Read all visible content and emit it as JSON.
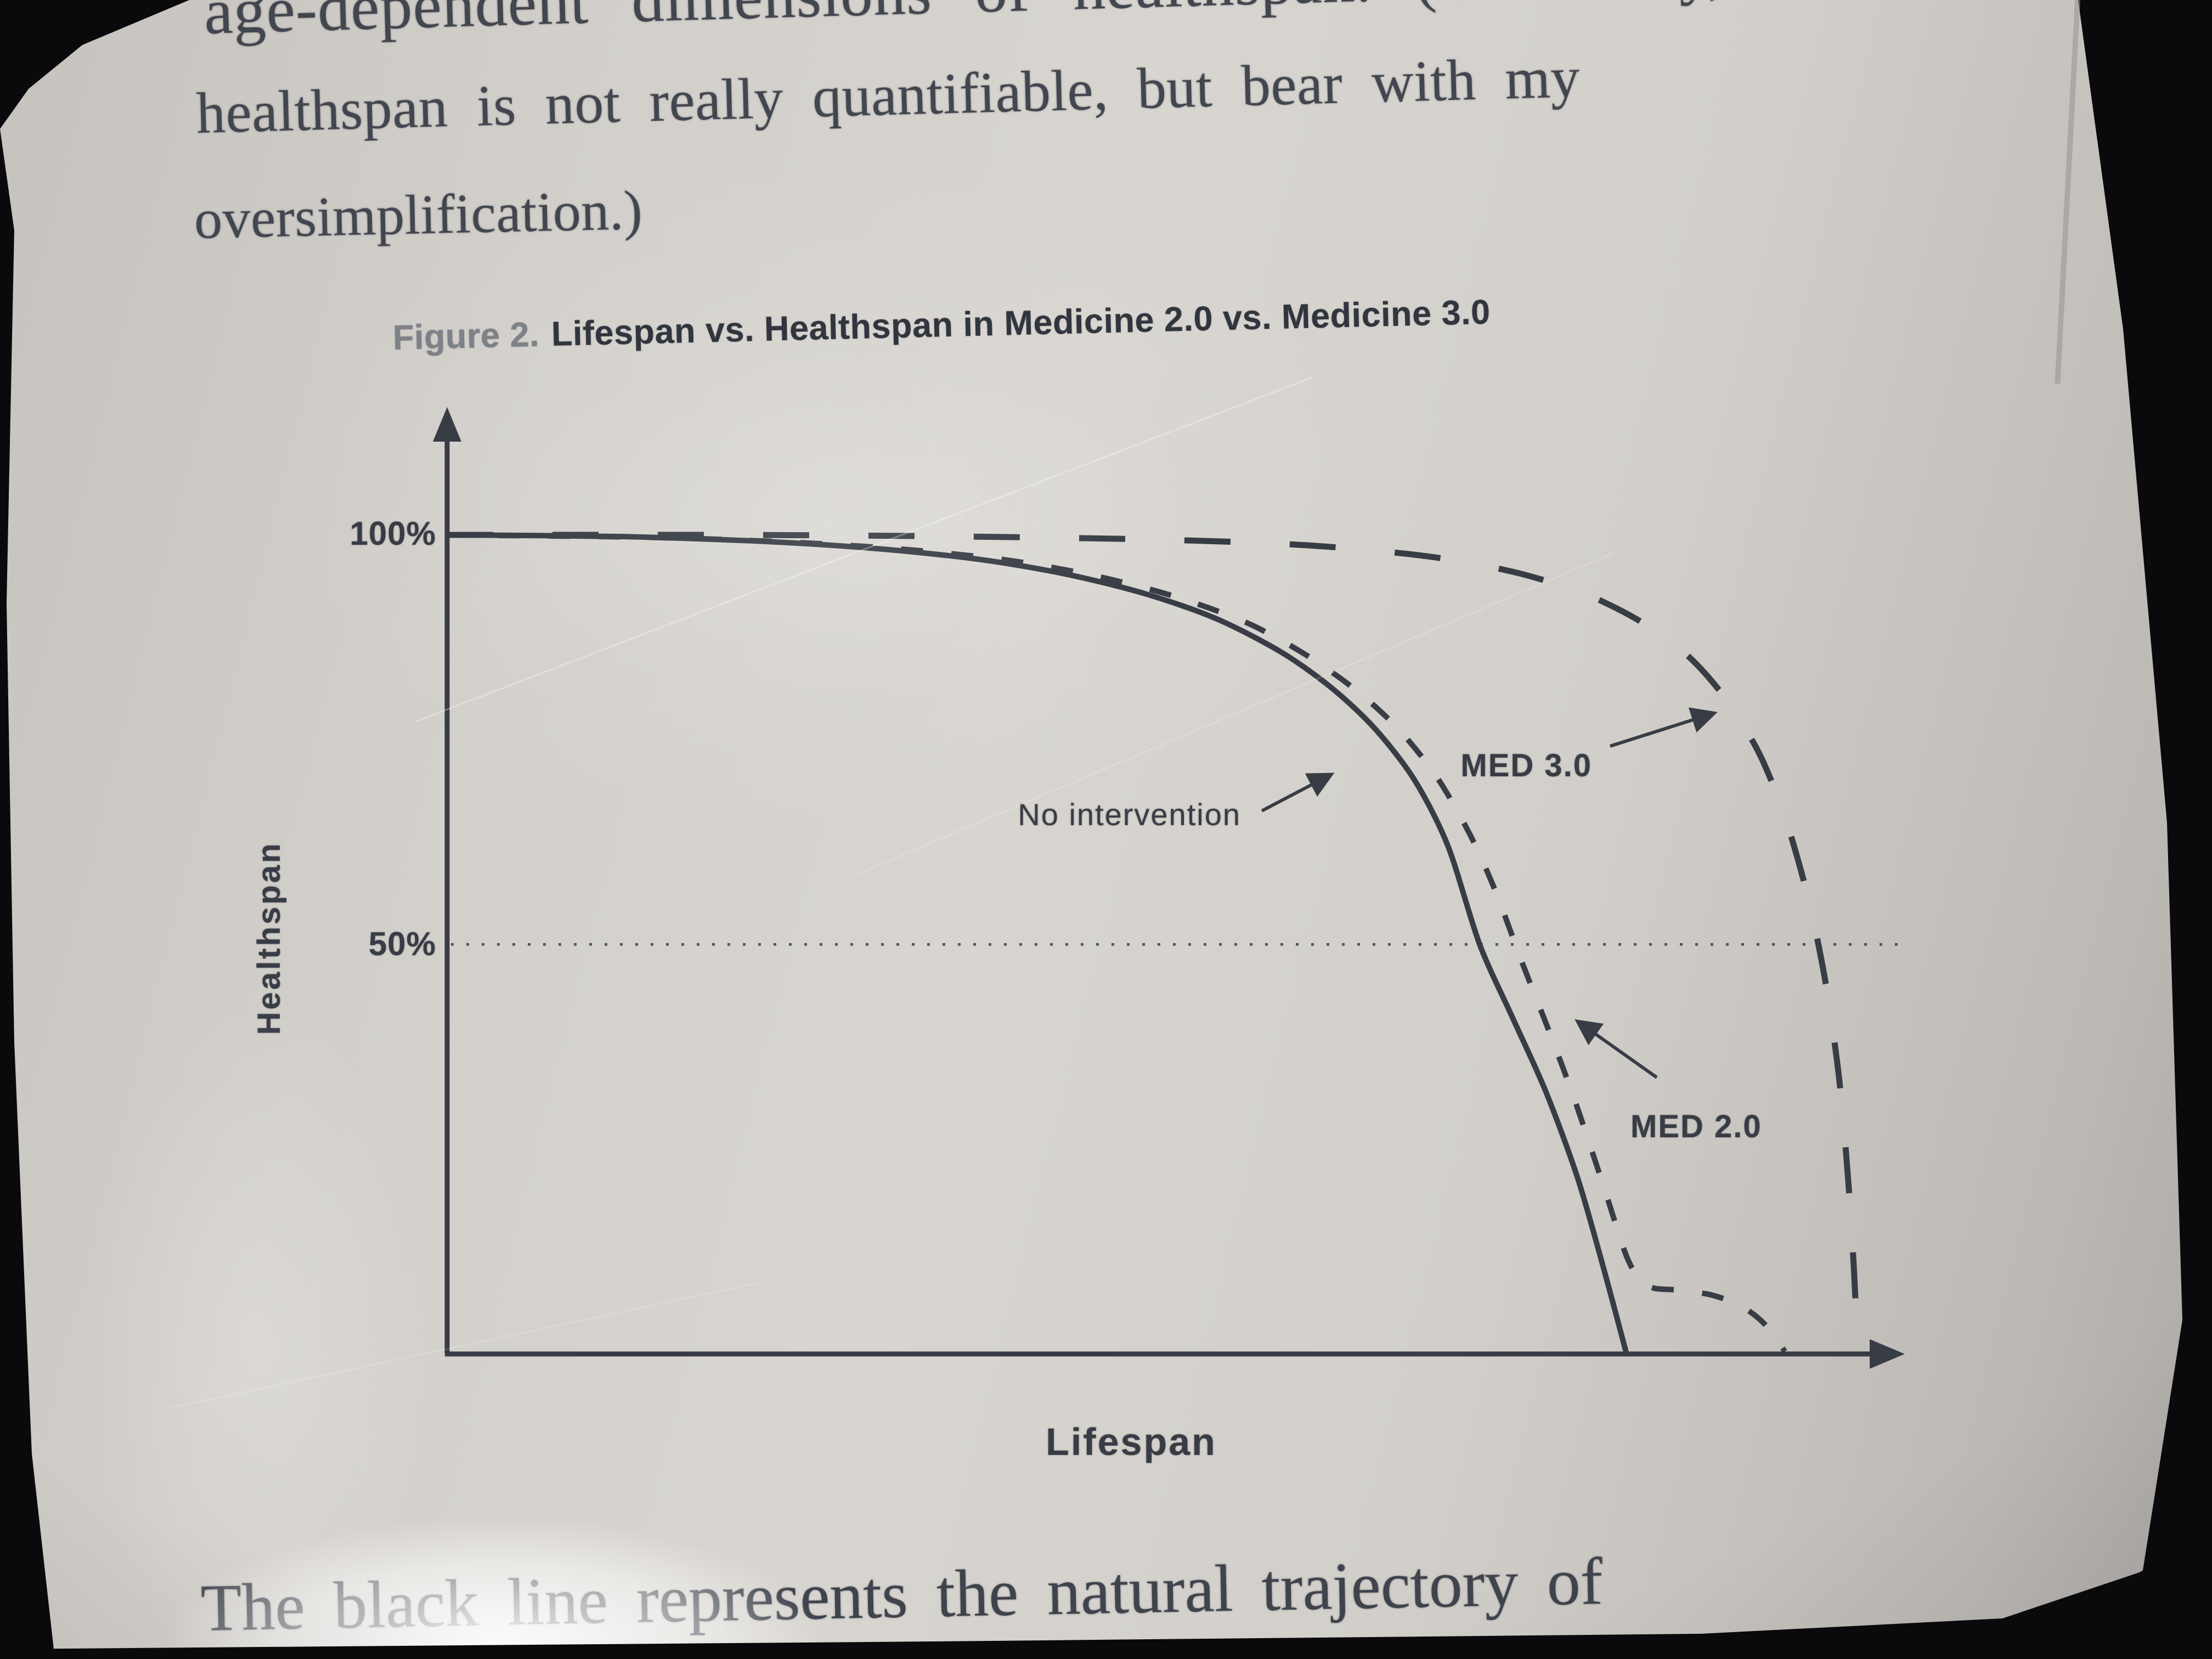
{
  "page": {
    "paragraph_top_lines": [
      "age-dependent dimensions of healthspan. (Obviously,",
      "healthspan is not really quantifiable, but bear with my",
      "oversimplification.)"
    ],
    "figure_caption": {
      "label": "Figure 2.",
      "title": "Lifespan vs. Healthspan in Medicine 2.0 vs. Medicine 3.0"
    },
    "paragraph_bottom": "The black line represents the natural trajectory of"
  },
  "chart_data": {
    "type": "line",
    "title": "Figure 2. Lifespan vs. Healthspan in Medicine 2.0 vs. Medicine 3.0",
    "xlabel": "Lifespan",
    "ylabel": "Healthspan",
    "x_axis": {
      "label": "Lifespan",
      "range_pct": [
        0,
        100
      ],
      "ticks": []
    },
    "y_axis": {
      "label": "Healthspan",
      "unit": "%",
      "range": [
        0,
        100
      ],
      "ticks": [
        {
          "label": "100%",
          "value": 100
        },
        {
          "label": "50%",
          "value": 50
        }
      ]
    },
    "grid": false,
    "legend_position": "inline-annotations",
    "reference_line": {
      "axis": "y",
      "value": 50,
      "style": "dotted"
    },
    "series": [
      {
        "name": "No intervention",
        "line_style": "solid",
        "points": [
          [
            0,
            100
          ],
          [
            12,
            99.8
          ],
          [
            22,
            99.2
          ],
          [
            30,
            98.3
          ],
          [
            37,
            97
          ],
          [
            43,
            95.2
          ],
          [
            48.5,
            92.8
          ],
          [
            53.5,
            89.7
          ],
          [
            58,
            85.6
          ],
          [
            61.5,
            81.2
          ],
          [
            64.5,
            76.2
          ],
          [
            67.2,
            70
          ],
          [
            69.5,
            62
          ],
          [
            71.7,
            50
          ],
          [
            74,
            41
          ],
          [
            76.3,
            32
          ],
          [
            78.5,
            21.5
          ],
          [
            80.3,
            10.5
          ],
          [
            81.9,
            0
          ]
        ]
      },
      {
        "name": "MED 2.0",
        "line_style": "short-dash",
        "points": [
          [
            0,
            100
          ],
          [
            14,
            99.7
          ],
          [
            24,
            99.1
          ],
          [
            32,
            98.2
          ],
          [
            39,
            96.9
          ],
          [
            45,
            95
          ],
          [
            50.5,
            92.5
          ],
          [
            55.5,
            89.3
          ],
          [
            59.5,
            85.5
          ],
          [
            63,
            81.2
          ],
          [
            66,
            76.4
          ],
          [
            68.7,
            70.5
          ],
          [
            71,
            63.5
          ],
          [
            72.8,
            56.5
          ],
          [
            74.6,
            48
          ],
          [
            76.5,
            39.5
          ],
          [
            78.3,
            31
          ],
          [
            80.3,
            20.5
          ],
          [
            82,
            11.5
          ],
          [
            83.4,
            8.3
          ],
          [
            85.5,
            7.8
          ],
          [
            87.8,
            7.2
          ],
          [
            89.8,
            5.9
          ],
          [
            91.4,
            3.8
          ],
          [
            92.9,
            0.3
          ]
        ]
      },
      {
        "name": "MED 3.0",
        "line_style": "long-dash",
        "points": [
          [
            0,
            100
          ],
          [
            20,
            100
          ],
          [
            36,
            99.8
          ],
          [
            50,
            99.4
          ],
          [
            60,
            98.7
          ],
          [
            68,
            97.4
          ],
          [
            74,
            95.5
          ],
          [
            79,
            92.8
          ],
          [
            83,
            89.3
          ],
          [
            86.3,
            85
          ],
          [
            89,
            79.5
          ],
          [
            91.2,
            73
          ],
          [
            93,
            65
          ],
          [
            94.6,
            55
          ],
          [
            95.8,
            44.5
          ],
          [
            96.7,
            33
          ],
          [
            97.3,
            21
          ],
          [
            97.7,
            10
          ],
          [
            97.95,
            0
          ]
        ]
      }
    ],
    "annotations": [
      {
        "text": "No intervention",
        "target_series": "No intervention"
      },
      {
        "text": "MED 3.0",
        "target_series": "MED 3.0"
      },
      {
        "text": "MED 2.0",
        "target_series": "MED 2.0"
      }
    ]
  },
  "colors": {
    "paper": "#d5d2cd",
    "ink": "#383c45",
    "muted_label": "#7e8188",
    "bezel": "#0a0a0c"
  }
}
